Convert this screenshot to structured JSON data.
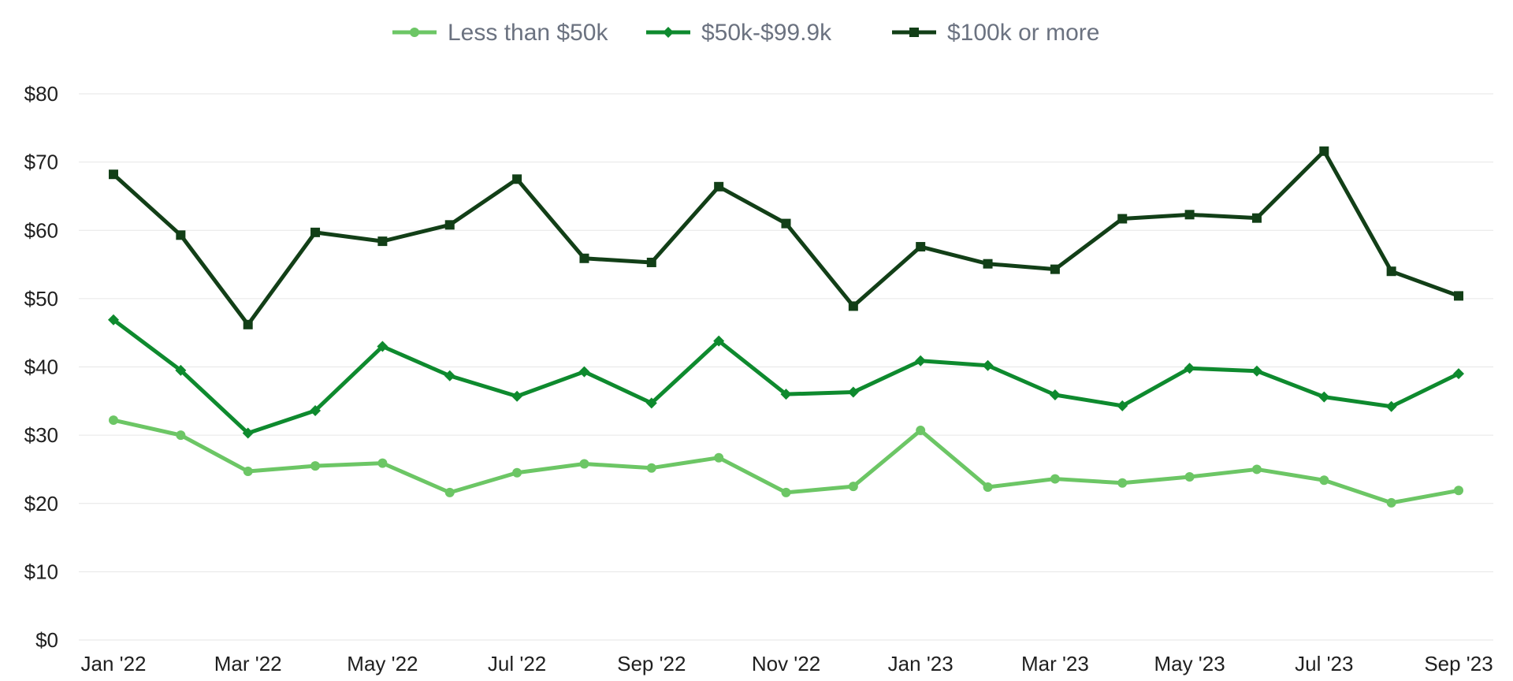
{
  "chart_data": {
    "type": "line",
    "title": "",
    "xlabel": "",
    "ylabel": "",
    "ylim": [
      0,
      80
    ],
    "y_ticks": [
      "$0",
      "$10",
      "$20",
      "$30",
      "$40",
      "$50",
      "$60",
      "$70",
      "$80"
    ],
    "y_tick_values": [
      0,
      10,
      20,
      30,
      40,
      50,
      60,
      70,
      80
    ],
    "categories": [
      "Jan '22",
      "Feb '22",
      "Mar '22",
      "Apr '22",
      "May '22",
      "Jun '22",
      "Jul '22",
      "Aug '22",
      "Sep '22",
      "Oct '22",
      "Nov '22",
      "Dec '22",
      "Jan '23",
      "Feb '23",
      "Mar '23",
      "Apr '23",
      "May '23",
      "Jun '23",
      "Jul '23",
      "Aug '23",
      "Sep '23"
    ],
    "x_tick_labels": [
      "Jan '22",
      "Mar '22",
      "May '22",
      "Jul '22",
      "Sep '22",
      "Nov '22",
      "Jan '23",
      "Mar '23",
      "May '23",
      "Jul '23",
      "Sep '23"
    ],
    "grid": true,
    "legend_position": "top-center",
    "series": [
      {
        "name": "Less than $50k",
        "color": "#6cc665",
        "marker": "circle",
        "values": [
          32.2,
          30.0,
          24.7,
          25.5,
          25.9,
          21.6,
          24.5,
          25.8,
          25.2,
          26.7,
          21.6,
          22.5,
          30.7,
          22.4,
          23.6,
          23.0,
          23.9,
          25.0,
          23.4,
          20.1,
          21.9
        ]
      },
      {
        "name": "$50k-$99.9k",
        "color": "#0e8a2e",
        "marker": "diamond",
        "values": [
          46.9,
          39.5,
          30.3,
          33.6,
          43.0,
          38.7,
          35.7,
          39.3,
          34.7,
          43.8,
          36.0,
          36.3,
          40.9,
          40.2,
          35.9,
          34.3,
          39.8,
          39.4,
          35.6,
          34.2,
          39.0
        ]
      },
      {
        "name": "$100k or more",
        "color": "#123f17",
        "marker": "square",
        "values": [
          68.2,
          59.3,
          46.2,
          59.7,
          58.4,
          60.8,
          67.5,
          55.9,
          55.3,
          66.4,
          61.0,
          48.9,
          57.6,
          55.1,
          54.3,
          61.7,
          62.3,
          61.8,
          71.6,
          54.0,
          50.4
        ]
      }
    ]
  }
}
